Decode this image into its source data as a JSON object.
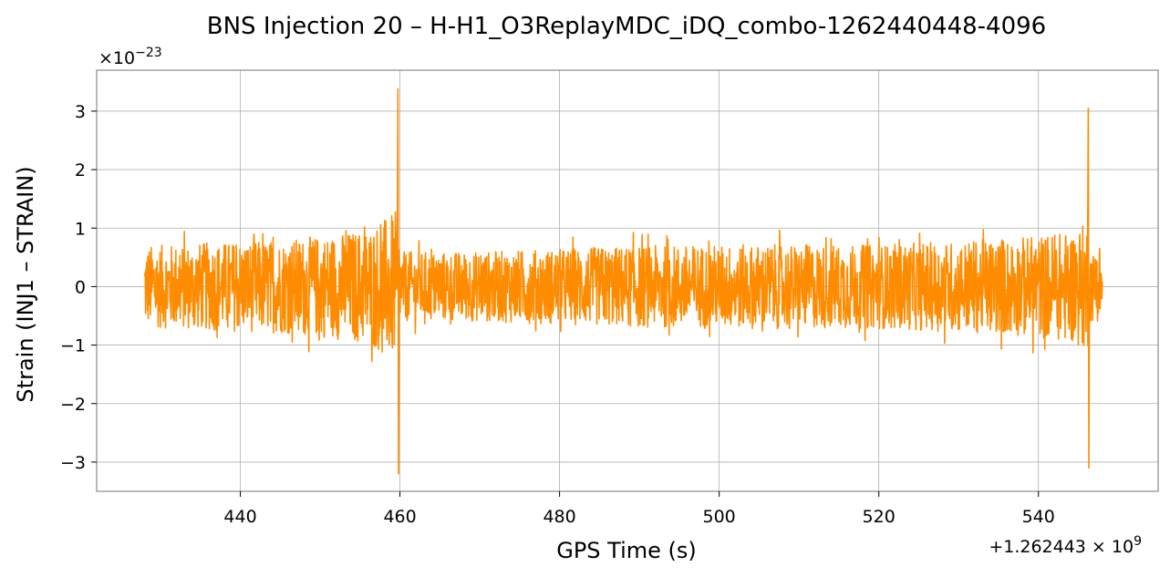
{
  "chart_data": {
    "type": "line",
    "title": "BNS Injection 20 – H-H1_O3ReplayMDC_iDQ_combo-1262440448-4096",
    "xlabel": "GPS Time (s)",
    "ylabel": "Strain (INJ1 – STRAIN)",
    "x_offset_text": "+1.262443 × 10",
    "x_offset_exp": "9",
    "y_multiplier_text": "×10",
    "y_multiplier_exp": "−23",
    "xlim": [
      422,
      555
    ],
    "ylim": [
      -3.5,
      3.7
    ],
    "x_ticks": [
      440,
      460,
      480,
      500,
      520,
      540
    ],
    "x_tick_labels": [
      "440",
      "460",
      "480",
      "500",
      "520",
      "540"
    ],
    "y_ticks": [
      -3,
      -2,
      -1,
      0,
      1,
      2,
      3
    ],
    "y_tick_labels": [
      "−3",
      "−2",
      "−1",
      "0",
      "1",
      "2",
      "3"
    ],
    "grid": true,
    "line_color": "#ff8c00",
    "series": [
      {
        "name": "",
        "x_start": 428,
        "x_end": 548,
        "noise_envelope_points": [
          [
            428,
            0.7
          ],
          [
            435,
            0.75
          ],
          [
            445,
            0.8
          ],
          [
            452,
            0.9
          ],
          [
            456,
            1.0
          ],
          [
            458.5,
            1.2
          ],
          [
            459.7,
            1.3
          ],
          [
            460,
            0.6
          ],
          [
            470,
            0.6
          ],
          [
            480,
            0.65
          ],
          [
            490,
            0.7
          ],
          [
            500,
            0.72
          ],
          [
            510,
            0.72
          ],
          [
            520,
            0.72
          ],
          [
            530,
            0.78
          ],
          [
            538,
            0.85
          ],
          [
            544,
            0.95
          ],
          [
            546.2,
            1.1
          ],
          [
            546.4,
            0.6
          ],
          [
            548,
            0.6
          ]
        ],
        "spikes": [
          {
            "x": 459.75,
            "max": 3.38,
            "min": -3.2
          },
          {
            "x": 546.25,
            "max": 3.05,
            "min": -3.1
          }
        ]
      }
    ]
  }
}
